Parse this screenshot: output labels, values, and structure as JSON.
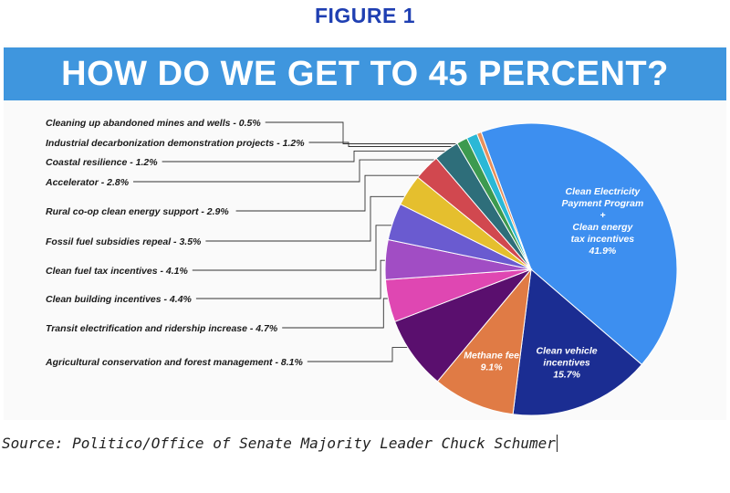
{
  "figure_label": "FIGURE 1",
  "source": "Source: Politico/Office of Senate Majority Leader Chuck Schumer",
  "colors": {
    "banner": "#3f96de",
    "figure_label": "#1f3fb2"
  },
  "chart_data": {
    "type": "pie",
    "title": "HOW DO WE GET TO 45 PERCENT?",
    "slices": [
      {
        "label": "Clean Electricity\nPayment Program\n+\nClean energy\ntax incentives\n41.9%",
        "value": 41.9,
        "color": "#3d8ff0",
        "label_style": "inside"
      },
      {
        "label": "Clean vehicle\nincentives\n15.7%",
        "value": 15.7,
        "color": "#1b2d92",
        "label_style": "inside"
      },
      {
        "label": "Methane fee\n9.1%",
        "value": 9.1,
        "color": "#e07b45",
        "label_style": "inside"
      },
      {
        "label": "Agricultural conservation and forest management - 8.1%",
        "value": 8.1,
        "color": "#5a0f6e",
        "label_style": "callout"
      },
      {
        "label": "Transit electrification and ridership increase - 4.7%",
        "value": 4.7,
        "color": "#df47b2",
        "label_style": "callout"
      },
      {
        "label": "Clean building incentives - 4.4%",
        "value": 4.4,
        "color": "#a14dc4",
        "label_style": "callout"
      },
      {
        "label": "Clean fuel tax incentives - 4.1%",
        "value": 4.1,
        "color": "#6a5bd0",
        "label_style": "callout"
      },
      {
        "label": "Fossil fuel subsidies repeal - 3.5%",
        "value": 3.5,
        "color": "#e5bf2e",
        "label_style": "callout"
      },
      {
        "label": "Rural co-op clean energy support  - 2.9%",
        "value": 2.9,
        "color": "#d1484f",
        "label_style": "callout"
      },
      {
        "label": "Accelerator - 2.8%",
        "value": 2.8,
        "color": "#2e6e7a",
        "label_style": "callout"
      },
      {
        "label": "Coastal resilience - 1.2%",
        "value": 1.2,
        "color": "#3d9a4f",
        "label_style": "callout"
      },
      {
        "label": "Industrial decarbonization demonstration projects - 1.2%",
        "value": 1.2,
        "color": "#2bb8d6",
        "label_style": "callout"
      },
      {
        "label": "Cleaning up abandoned mines and wells - 0.5%",
        "value": 0.5,
        "color": "#e8905c",
        "label_style": "callout"
      }
    ]
  }
}
